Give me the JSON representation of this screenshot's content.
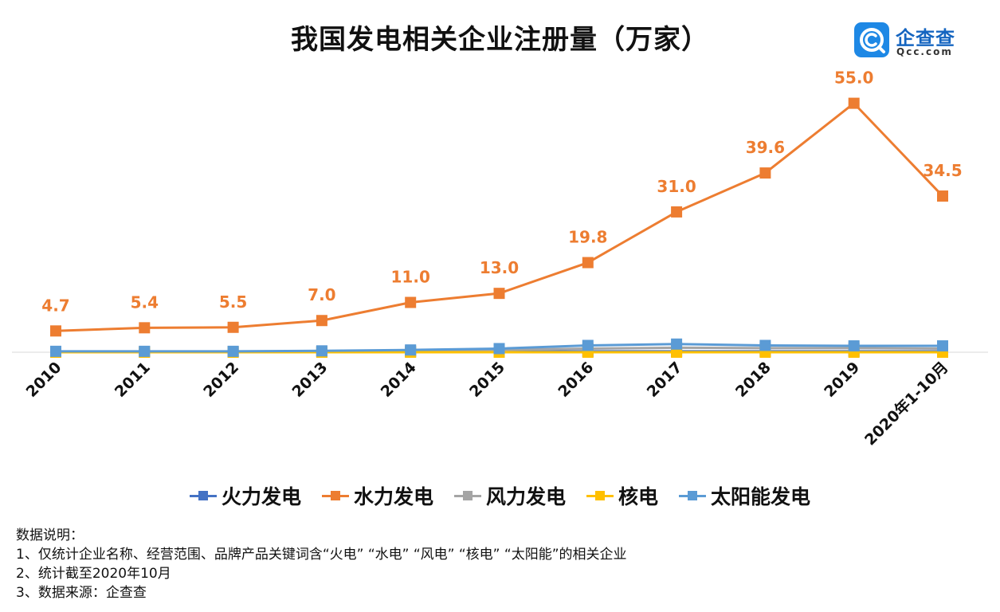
{
  "page": {
    "title": "我国发电相关企业注册量（万家）"
  },
  "logo": {
    "name": "企查查",
    "domain": "Qcc.com",
    "icon": "qcc-logo-icon",
    "color": "#1e88e5"
  },
  "chart_data": {
    "type": "line",
    "title": "我国发电相关企业注册量（万家）",
    "xlabel": "",
    "ylabel": "",
    "categories": [
      "2010",
      "2011",
      "2012",
      "2013",
      "2014",
      "2015",
      "2016",
      "2017",
      "2018",
      "2019",
      "2020年1-10月"
    ],
    "ylim": [
      0,
      60
    ],
    "grid": false,
    "legend_position": "bottom",
    "series": [
      {
        "name": "火力发电",
        "color": "#4472c4",
        "values": [
          0.1,
          0.1,
          0.1,
          0.1,
          0.1,
          0.1,
          0.2,
          0.2,
          0.2,
          0.2,
          0.2
        ]
      },
      {
        "name": "水力发电",
        "color": "#ed7d31",
        "values": [
          4.7,
          5.4,
          5.5,
          7.0,
          11.0,
          13.0,
          19.8,
          31.0,
          39.6,
          55.0,
          34.5
        ],
        "labels": [
          "4.7",
          "5.4",
          "5.5",
          "7.0",
          "11.0",
          "13.0",
          "19.8",
          "31.0",
          "39.6",
          "55.0",
          "34.5"
        ]
      },
      {
        "name": "风力发电",
        "color": "#a5a5a5",
        "values": [
          0.1,
          0.1,
          0.1,
          0.2,
          0.3,
          0.5,
          0.8,
          1.0,
          0.9,
          0.9,
          0.8
        ]
      },
      {
        "name": "核电",
        "color": "#ffc000",
        "values": [
          0.0,
          0.0,
          0.0,
          0.0,
          0.0,
          0.0,
          0.0,
          0.0,
          0.0,
          0.0,
          0.0
        ]
      },
      {
        "name": "太阳能发电",
        "color": "#5b9bd5",
        "values": [
          0.2,
          0.2,
          0.2,
          0.3,
          0.5,
          0.8,
          1.5,
          1.8,
          1.5,
          1.4,
          1.4
        ]
      }
    ]
  },
  "notes": {
    "heading": "数据说明：",
    "line1": "1、仅统计企业名称、经营范围、品牌产品关键词含“火电” “水电” “风电” “核电” “太阳能”的相关企业",
    "line2": "2、统计截至2020年10月",
    "line3": "3、数据来源：企查查"
  }
}
